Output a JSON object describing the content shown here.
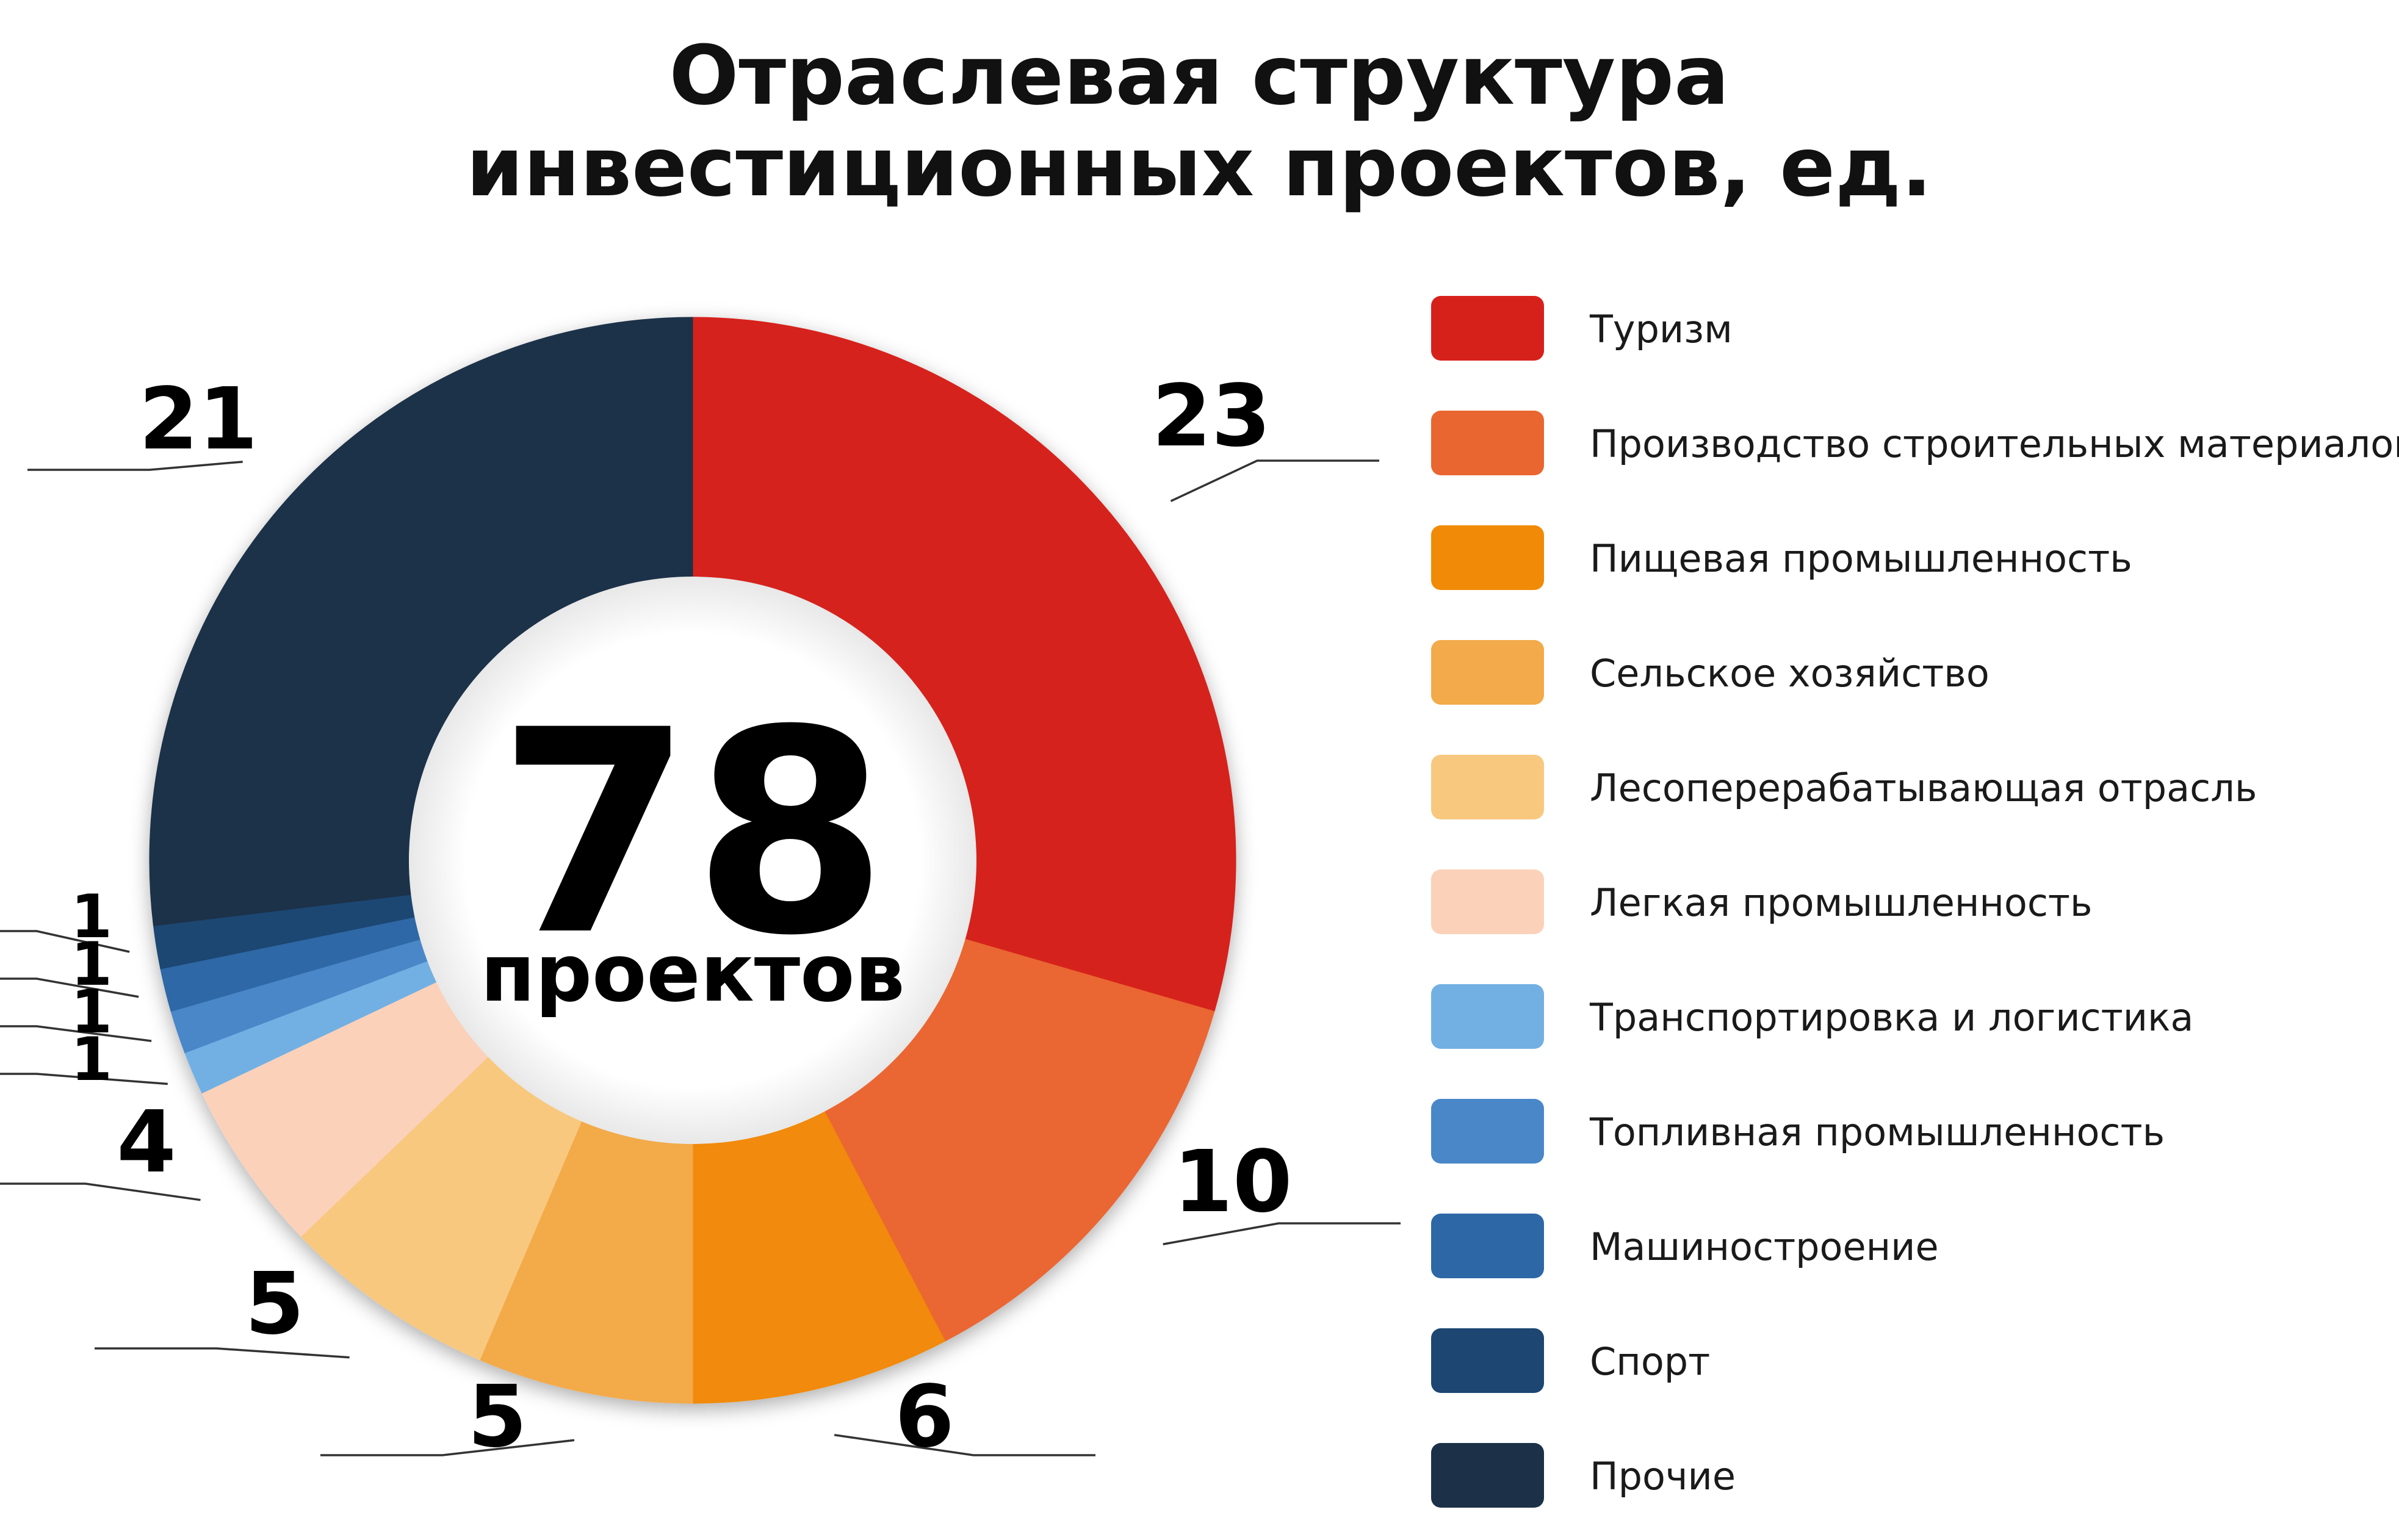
{
  "chart_data": {
    "type": "pie",
    "variant": "donut",
    "title": "Отраслевая структура инвестиционных проектов, ед.",
    "title_lines": [
      "Отраслевая структура",
      "инвестиционных проектов, ед."
    ],
    "center": {
      "total": "78",
      "unit": "проектов"
    },
    "legend_position": "right",
    "slices": [
      {
        "label": "Туризм",
        "value": 23,
        "value_label": "23",
        "color": "#d6211b"
      },
      {
        "label": "Производство строительных материалов",
        "value": 10,
        "value_label": "10",
        "color": "#ea6630"
      },
      {
        "label": "Пищевая промышленность",
        "value": 6,
        "value_label": "6",
        "color": "#f18a07"
      },
      {
        "label": "Сельское хозяйство",
        "value": 5,
        "value_label": "5",
        "color": "#f3aa4a"
      },
      {
        "label": "Лесоперерабатывающая отрасль",
        "value": 5,
        "value_label": "5",
        "color": "#f8c87f"
      },
      {
        "label": "Легкая промышленность",
        "value": 4,
        "value_label": "4",
        "color": "#fbd1ba"
      },
      {
        "label": "Транспортировка и логистика",
        "value": 1,
        "value_label": "1",
        "color": "#72b0e3"
      },
      {
        "label": "Топливная промышленность",
        "value": 1,
        "value_label": "1",
        "color": "#4a87c9"
      },
      {
        "label": "Машиностроение",
        "value": 1,
        "value_label": "1",
        "color": "#2e67a6"
      },
      {
        "label": "Спорт",
        "value": 1,
        "value_label": "1",
        "color": "#1d4672"
      },
      {
        "label": "Прочие",
        "value": 21,
        "value_label": "21",
        "color": "#1c3048"
      }
    ]
  }
}
